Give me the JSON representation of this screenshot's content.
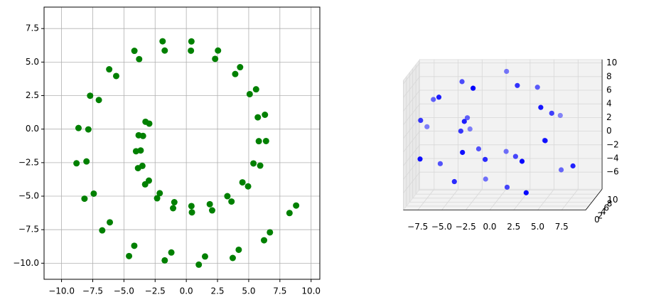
{
  "chart_data": [
    {
      "type": "scatter",
      "color": "#008000",
      "grid": true,
      "xlim": [
        -11.4,
        10.7
      ],
      "ylim": [
        -11.2,
        9.1
      ],
      "xticks": [
        {
          "value": -10,
          "label": "−10.0"
        },
        {
          "value": -7.5,
          "label": "−7.5"
        },
        {
          "value": -5,
          "label": "−5.0"
        },
        {
          "value": -2.5,
          "label": "−2.5"
        },
        {
          "value": 0,
          "label": "0.0"
        },
        {
          "value": 2.5,
          "label": "2.5"
        },
        {
          "value": 5,
          "label": "5.0"
        },
        {
          "value": 7.5,
          "label": "7.5"
        },
        {
          "value": 10,
          "label": "10.0"
        }
      ],
      "yticks": [
        {
          "value": -10,
          "label": "−10.0"
        },
        {
          "value": -7.5,
          "label": "−7.5"
        },
        {
          "value": -5,
          "label": "−5.0"
        },
        {
          "value": -2.5,
          "label": "−2.5"
        },
        {
          "value": 0,
          "label": "0.0"
        },
        {
          "value": 2.5,
          "label": "2.5"
        },
        {
          "value": 5,
          "label": "5.0"
        },
        {
          "value": 7.5,
          "label": "7.5"
        }
      ],
      "x": [
        -2.97,
        -3.47,
        -3.66,
        -3.52,
        -3.0,
        -2.13,
        -0.96,
        0.41,
        1.88,
        3.29,
        4.5,
        5.38,
        5.81,
        5.73,
        5.08,
        3.92,
        2.31,
        0.37,
        -1.73,
        -3.78,
        -5.62,
        -7.01,
        -7.85,
        -8.0,
        -7.42,
        -6.13,
        -4.17,
        -1.73,
        1.0,
        3.72,
        6.23,
        8.27,
        -3.27,
        -3.82,
        -4.03,
        -3.87,
        -3.3,
        -2.34,
        -1.06,
        0.45,
        2.07,
        3.62,
        4.95,
        5.92,
        6.39,
        6.3,
        5.59,
        4.31,
        2.54,
        0.41,
        -1.9,
        -4.16,
        -6.18,
        -7.71,
        -8.64,
        -8.8,
        -8.16,
        -6.74,
        -4.59,
        -1.2,
        1.5,
        4.2,
        6.7,
        8.8
      ],
      "y": [
        0.41,
        -0.51,
        -1.59,
        -2.74,
        -3.84,
        -4.78,
        -5.45,
        -5.74,
        -5.6,
        -5.0,
        -3.97,
        -2.56,
        -0.9,
        0.88,
        2.61,
        4.11,
        5.24,
        5.85,
        5.86,
        5.22,
        3.96,
        2.17,
        -0.02,
        -2.41,
        -4.81,
        -6.95,
        -8.7,
        -9.79,
        -10.11,
        -9.61,
        -8.29,
        -6.26,
        0.55,
        -0.46,
        -1.65,
        -2.91,
        -4.12,
        -5.16,
        -5.9,
        -6.21,
        -6.06,
        -5.4,
        -4.27,
        -2.72,
        -0.89,
        1.07,
        2.97,
        4.62,
        5.86,
        6.54,
        6.55,
        5.84,
        4.46,
        2.49,
        0.08,
        -2.55,
        -5.19,
        -7.55,
        -9.47,
        -9.2,
        -9.5,
        -9.0,
        -7.7,
        -5.7
      ]
    },
    {
      "type": "scatter3d",
      "color": "#0000ff",
      "xlim": [
        -9,
        10
      ],
      "ylim": [
        0,
        10.5
      ],
      "zlim": [
        -8.5,
        10.5
      ],
      "xticks": [
        {
          "value": -7.5,
          "label": "−7.5"
        },
        {
          "value": -5,
          "label": "−5.0"
        },
        {
          "value": -2.5,
          "label": "−2.5"
        },
        {
          "value": 0,
          "label": "0.0"
        },
        {
          "value": 2.5,
          "label": "2.5"
        },
        {
          "value": 5,
          "label": "5.0"
        },
        {
          "value": 7.5,
          "label": "7.5"
        }
      ],
      "yticks": [
        0,
        2,
        4,
        6,
        8,
        10
      ],
      "zticks": [
        {
          "value": -6,
          "label": "−6"
        },
        {
          "value": -4,
          "label": "−4"
        },
        {
          "value": -2,
          "label": "−2"
        },
        0,
        2,
        4,
        6,
        8,
        10
      ],
      "x": [
        -2.97,
        -3.47,
        -3.66,
        -3.52,
        -3.0,
        -2.13,
        -0.96,
        0.41,
        1.88,
        3.29,
        4.5,
        5.38,
        5.81,
        5.73,
        5.08,
        3.92,
        2.31,
        0.37,
        -1.73,
        -3.78,
        -5.62,
        -7.01,
        -7.85,
        -8.0,
        -7.42,
        -6.13,
        -4.17,
        -1.73,
        1.0,
        3.72,
        6.23,
        8.27
      ],
      "y": [
        2,
        7,
        4,
        9,
        1,
        6,
        3,
        8,
        5,
        0.5,
        7.5,
        2.5,
        9.5,
        4.5,
        1.5,
        6.5,
        3.5,
        8.5,
        0,
        5.5,
        2,
        7,
        4,
        9,
        1,
        6,
        3,
        8,
        5,
        0.5,
        7.5,
        2.5
      ],
      "z": [
        3.91,
        2.99,
        1.91,
        0.76,
        -0.34,
        -1.28,
        -1.95,
        -2.24,
        -2.1,
        -1.5,
        -0.47,
        0.94,
        2.6,
        4.38,
        6.11,
        7.61,
        8.74,
        9.35,
        9.36,
        8.72,
        7.46,
        5.67,
        3.48,
        1.09,
        -1.31,
        -3.45,
        -5.2,
        -6.29,
        -6.61,
        -6.11,
        -4.79,
        -2.76
      ]
    }
  ]
}
